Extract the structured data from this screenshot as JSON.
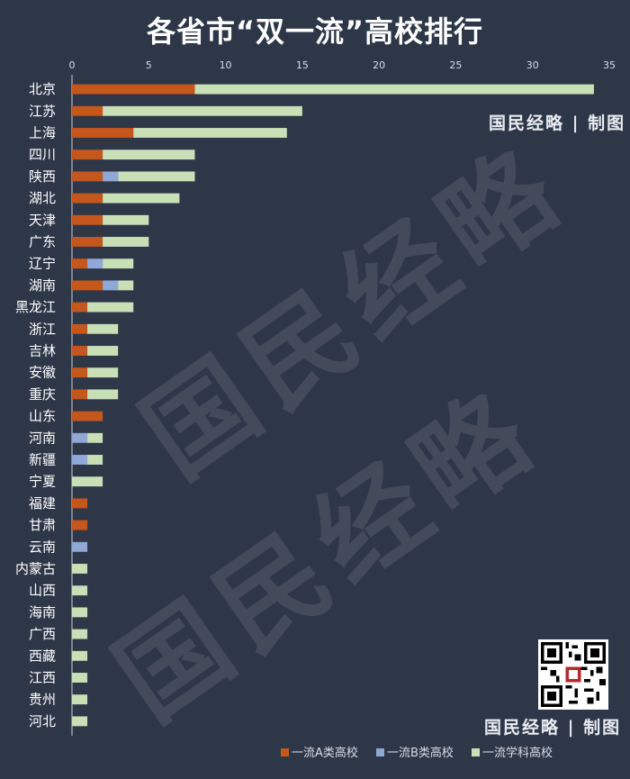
{
  "watermark_text": "国民经略",
  "credit_text": "国民经略 | 制图",
  "colors": {
    "background": "#2e3748",
    "series_a": "#c5561c",
    "series_b": "#8fa8d6",
    "series_c": "#c9dfb6",
    "grid": "#c8cdd6"
  },
  "chart_data": {
    "type": "bar",
    "orientation": "horizontal",
    "stacked": true,
    "title": "各省市“双一流”高校排行",
    "xlim": [
      0,
      35
    ],
    "xticks": [
      0,
      5,
      10,
      15,
      20,
      25,
      30,
      35
    ],
    "axis_position": "top",
    "grid": false,
    "legend_position": "bottom-right",
    "categories": [
      "北京",
      "江苏",
      "上海",
      "四川",
      "陕西",
      "湖北",
      "天津",
      "广东",
      "辽宁",
      "湖南",
      "黑龙江",
      "浙江",
      "吉林",
      "安徽",
      "重庆",
      "山东",
      "河南",
      "新疆",
      "宁夏",
      "福建",
      "甘肃",
      "云南",
      "内蒙古",
      "山西",
      "海南",
      "广西",
      "西藏",
      "江西",
      "贵州",
      "河北"
    ],
    "series": [
      {
        "name": "一流A类高校",
        "color": "#c5561c",
        "values": [
          8,
          2,
          4,
          2,
          2,
          2,
          2,
          2,
          1,
          2,
          1,
          1,
          1,
          1,
          1,
          2,
          0,
          0,
          0,
          1,
          1,
          0,
          0,
          0,
          0,
          0,
          0,
          0,
          0,
          0
        ]
      },
      {
        "name": "一流B类高校",
        "color": "#8fa8d6",
        "values": [
          0,
          0,
          0,
          0,
          1,
          0,
          0,
          0,
          1,
          1,
          0,
          0,
          0,
          0,
          0,
          0,
          1,
          1,
          0,
          0,
          0,
          1,
          0,
          0,
          0,
          0,
          0,
          0,
          0,
          0
        ]
      },
      {
        "name": "一流学科高校",
        "color": "#c9dfb6",
        "values": [
          26,
          13,
          10,
          6,
          5,
          5,
          3,
          3,
          2,
          1,
          3,
          2,
          2,
          2,
          2,
          0,
          1,
          1,
          2,
          0,
          0,
          0,
          1,
          1,
          1,
          1,
          1,
          1,
          1,
          1
        ]
      }
    ]
  }
}
